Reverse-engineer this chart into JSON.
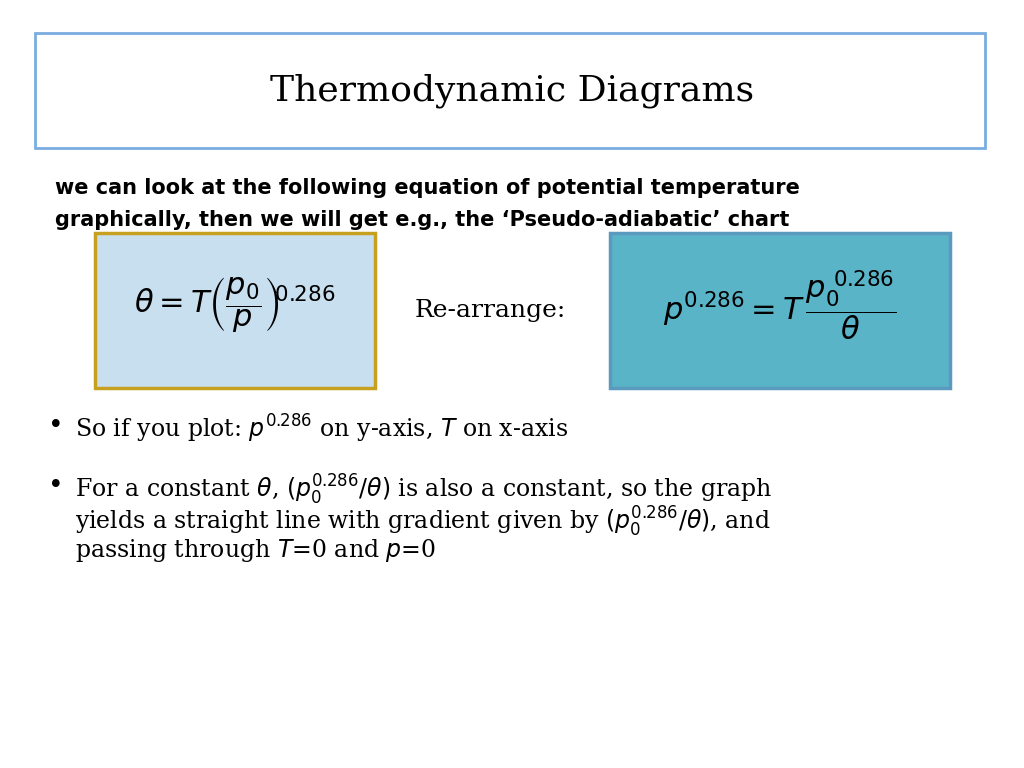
{
  "title": "Thermodynamic Diagrams",
  "title_box_color": "#7aace0",
  "background": "#ffffff",
  "intro_text_line1": "we can look at the following equation of potential temperature",
  "intro_text_line2": "graphically, then we will get e.g., the ‘Pseudo-adiabatic’ chart",
  "eq1_box_color": "#c8dff0",
  "eq1_border_color": "#c8a020",
  "eq2_box_color": "#5ab4c8",
  "eq2_border_color": "#5a9abf",
  "rearrange_text": "Re-arrange:",
  "bullet1": "So if you plot: $p^{0.286}$ on y-axis, $T$ on x-axis",
  "bullet2_line1": "For a constant $\\theta$, $(p_0^{0.286}/\\theta)$ is also a constant, so the graph",
  "bullet2_line2": "yields a straight line with gradient given by $(p_0^{0.286}/\\theta)$, and",
  "bullet2_line3": "passing through $T$=0 and $p$=0",
  "title_fontsize": 26,
  "intro_fontsize": 15,
  "eq_fontsize": 22,
  "rearrange_fontsize": 18,
  "bullet_fontsize": 17
}
